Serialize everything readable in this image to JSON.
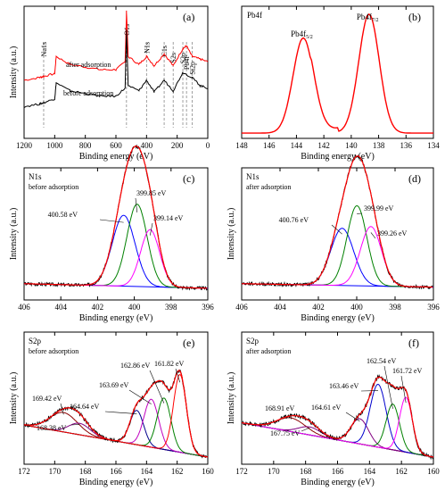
{
  "figure": {
    "panels": [
      {
        "id": "a",
        "letter": "(a)",
        "type": "line",
        "xlabel": "Binding energy (eV)",
        "ylabel": "Intensity (a.u.)",
        "xlim": [
          1200,
          0
        ],
        "xticks": [
          1200,
          1000,
          800,
          600,
          400,
          200,
          0
        ],
        "peak_labels": [
          {
            "text": "Na1s",
            "x": 1072
          },
          {
            "text": "O1s",
            "x": 531
          },
          {
            "text": "N1s",
            "x": 400
          },
          {
            "text": "C1s",
            "x": 285
          },
          {
            "text": "S2s",
            "x": 226
          },
          {
            "text": "S2p",
            "x": 163
          },
          {
            "text": "Pb4f",
            "x": 139
          },
          {
            "text": "Si2p",
            "x": 102
          }
        ],
        "series_labels": [
          "after adsorption",
          "before adsorption"
        ]
      },
      {
        "id": "b",
        "letter": "(b)",
        "type": "line",
        "title": "Pb4f",
        "xlabel": "Binding energy (eV)",
        "ylabel": "",
        "xlim": [
          148,
          134
        ],
        "xticks": [
          148,
          146,
          144,
          142,
          140,
          138,
          136,
          134
        ],
        "peaks": [
          {
            "label": "Pb4f",
            "sub": "5/2",
            "x": 143.5
          },
          {
            "label": "Pb4f",
            "sub": "7/2",
            "x": 138.7
          }
        ]
      },
      {
        "id": "c",
        "letter": "(c)",
        "type": "line",
        "title": "N1s",
        "subtitle": "before adsorption",
        "xlabel": "Binding energy (eV)",
        "ylabel": "Intensity (a.u.)",
        "xlim": [
          406,
          396
        ],
        "xticks": [
          406,
          404,
          402,
          400,
          398,
          396
        ],
        "components": [
          {
            "label": "400.58 eV",
            "center": 400.58,
            "height": 0.62,
            "sigma": 0.62,
            "color": "#0000ff"
          },
          {
            "label": "399.85 eV",
            "center": 399.85,
            "height": 0.72,
            "sigma": 0.55,
            "color": "#008000"
          },
          {
            "label": "399.14 eV",
            "center": 399.14,
            "height": 0.5,
            "sigma": 0.52,
            "color": "#ff00ff"
          }
        ]
      },
      {
        "id": "d",
        "letter": "(d)",
        "type": "line",
        "title": "N1s",
        "subtitle": "after adsorption",
        "xlabel": "Binding energy (eV)",
        "ylabel": "Intensity (a.u.)",
        "xlim": [
          406,
          396
        ],
        "xticks": [
          406,
          404,
          402,
          400,
          398,
          396
        ],
        "components": [
          {
            "label": "400.76 eV",
            "center": 400.76,
            "height": 0.5,
            "sigma": 0.6,
            "color": "#0000ff"
          },
          {
            "label": "399.99 eV",
            "center": 399.99,
            "height": 0.7,
            "sigma": 0.52,
            "color": "#008000"
          },
          {
            "label": "399.26 eV",
            "center": 399.26,
            "height": 0.52,
            "sigma": 0.55,
            "color": "#ff00ff"
          }
        ]
      },
      {
        "id": "e",
        "letter": "(e)",
        "type": "line",
        "title": "S2p",
        "subtitle": "before adsorption",
        "xlabel": "Binding energy (eV)",
        "ylabel": "Intensity (a.u.)",
        "xlim": [
          172,
          160
        ],
        "xticks": [
          172,
          170,
          168,
          166,
          164,
          162,
          160
        ],
        "components": [
          {
            "label": "169.42 eV",
            "center": 169.42,
            "height": 0.17,
            "sigma": 0.9,
            "color": "#8b0000"
          },
          {
            "label": "168.38 eV",
            "center": 168.38,
            "height": 0.1,
            "sigma": 0.7,
            "color": "#800080"
          },
          {
            "label": "164.64 eV",
            "center": 164.64,
            "height": 0.3,
            "sigma": 0.45,
            "color": "#00008b"
          },
          {
            "label": "163.69 eV",
            "center": 163.69,
            "height": 0.42,
            "sigma": 0.48,
            "color": "#c000c0"
          },
          {
            "label": "162.86 eV",
            "center": 162.86,
            "height": 0.45,
            "sigma": 0.45,
            "color": "#008000"
          },
          {
            "label": "161.82 eV",
            "center": 161.82,
            "height": 0.68,
            "sigma": 0.42,
            "color": "#ff0000"
          }
        ]
      },
      {
        "id": "f",
        "letter": "(f)",
        "type": "line",
        "title": "S2p",
        "subtitle": "after adsorption",
        "xlabel": "Binding energy (eV)",
        "ylabel": "Intensity (a.u.)",
        "xlim": [
          172,
          160
        ],
        "xticks": [
          172,
          170,
          168,
          166,
          164,
          162,
          160
        ],
        "components": [
          {
            "label": "168.91 eV",
            "center": 168.91,
            "height": 0.12,
            "sigma": 0.9,
            "color": "#8b0000"
          },
          {
            "label": "167.75 eV",
            "center": 167.75,
            "height": 0.07,
            "sigma": 0.7,
            "color": "#800080"
          },
          {
            "label": "164.61 eV",
            "center": 164.61,
            "height": 0.22,
            "sigma": 0.55,
            "color": "#800080"
          },
          {
            "label": "163.46 eV",
            "center": 163.46,
            "height": 0.55,
            "sigma": 0.5,
            "color": "#0000cd"
          },
          {
            "label": "162.54 eV",
            "center": 162.54,
            "height": 0.4,
            "sigma": 0.42,
            "color": "#008000"
          },
          {
            "label": "161.72 eV",
            "center": 161.72,
            "height": 0.48,
            "sigma": 0.4,
            "color": "#ff00ff"
          }
        ]
      }
    ]
  },
  "chart_data": [
    {
      "type": "line",
      "xlabel": "Binding energy (eV)",
      "ylabel": "Intensity (a.u.)",
      "xlim": [
        1200,
        0
      ],
      "series": [
        {
          "name": "after adsorption",
          "x": [
            1200,
            1100,
            1072,
            1000,
            990,
            900,
            800,
            700,
            600,
            540,
            531,
            520,
            450,
            400,
            350,
            285,
            226,
            163,
            139,
            102,
            50,
            0
          ],
          "values": [
            0.44,
            0.46,
            0.47,
            0.49,
            0.62,
            0.56,
            0.54,
            0.52,
            0.52,
            0.58,
            0.96,
            0.62,
            0.56,
            0.62,
            0.55,
            0.64,
            0.55,
            0.68,
            0.7,
            0.62,
            0.6,
            0.58
          ]
        },
        {
          "name": "before adsorption",
          "x": [
            1200,
            1100,
            1072,
            1000,
            990,
            900,
            800,
            700,
            600,
            540,
            531,
            520,
            450,
            400,
            350,
            285,
            226,
            163,
            102,
            50,
            0
          ],
          "values": [
            0.24,
            0.26,
            0.27,
            0.3,
            0.42,
            0.36,
            0.34,
            0.32,
            0.32,
            0.38,
            0.82,
            0.4,
            0.36,
            0.44,
            0.35,
            0.44,
            0.36,
            0.5,
            0.46,
            0.4,
            0.38
          ]
        }
      ]
    },
    {
      "type": "line",
      "title": "Pb4f",
      "xlabel": "Binding energy (eV)",
      "xlim": [
        148,
        134
      ],
      "series": [
        {
          "name": "",
          "x": [
            148,
            146,
            144,
            143.5,
            143,
            142,
            141,
            140,
            139,
            138.7,
            138,
            137,
            136,
            134
          ],
          "values": [
            0.06,
            0.12,
            0.62,
            0.75,
            0.62,
            0.18,
            0.16,
            0.3,
            0.85,
            0.95,
            0.7,
            0.2,
            0.08,
            0.04
          ]
        }
      ]
    },
    {
      "type": "line",
      "title": "N1s",
      "xlabel": "Binding energy (eV)",
      "ylabel": "Intensity (a.u.)",
      "xlim": [
        406,
        396
      ],
      "series": [
        {
          "name": "400.58 eV",
          "values": [
            400.58
          ]
        },
        {
          "name": "399.85 eV",
          "values": [
            399.85
          ]
        },
        {
          "name": "399.14 eV",
          "values": [
            399.14
          ]
        }
      ]
    },
    {
      "type": "line",
      "title": "N1s",
      "xlabel": "Binding energy (eV)",
      "ylabel": "Intensity (a.u.)",
      "xlim": [
        406,
        396
      ],
      "series": [
        {
          "name": "400.76 eV",
          "values": [
            400.76
          ]
        },
        {
          "name": "399.99 eV",
          "values": [
            399.99
          ]
        },
        {
          "name": "399.26 eV",
          "values": [
            399.26
          ]
        }
      ]
    },
    {
      "type": "line",
      "title": "S2p",
      "xlabel": "Binding energy (eV)",
      "ylabel": "Intensity (a.u.)",
      "xlim": [
        172,
        160
      ],
      "series": [
        {
          "name": "169.42 eV",
          "values": [
            169.42
          ]
        },
        {
          "name": "168.38 eV",
          "values": [
            168.38
          ]
        },
        {
          "name": "164.64 eV",
          "values": [
            164.64
          ]
        },
        {
          "name": "163.69 eV",
          "values": [
            163.69
          ]
        },
        {
          "name": "162.86 eV",
          "values": [
            162.86
          ]
        },
        {
          "name": "161.82 eV",
          "values": [
            161.82
          ]
        }
      ]
    },
    {
      "type": "line",
      "title": "S2p",
      "xlabel": "Binding energy (eV)",
      "ylabel": "Intensity (a.u.)",
      "xlim": [
        172,
        160
      ],
      "series": [
        {
          "name": "168.91 eV",
          "values": [
            168.91
          ]
        },
        {
          "name": "167.75 eV",
          "values": [
            167.75
          ]
        },
        {
          "name": "164.61 eV",
          "values": [
            164.61
          ]
        },
        {
          "name": "163.46 eV",
          "values": [
            163.46
          ]
        },
        {
          "name": "162.54 eV",
          "values": [
            162.54
          ]
        },
        {
          "name": "161.72 eV",
          "values": [
            161.72
          ]
        }
      ]
    }
  ]
}
